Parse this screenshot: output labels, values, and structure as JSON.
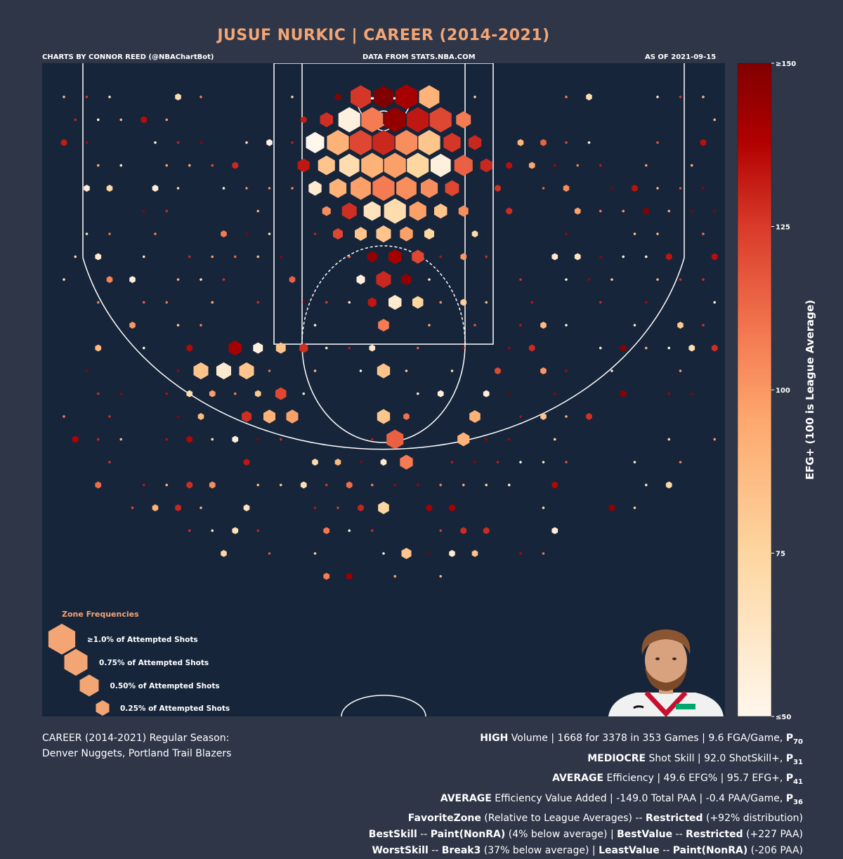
{
  "header": {
    "title": "JUSUF NURKIC | CAREER (2014-2021)",
    "credit": "CHARTS BY CONNOR REED (@NBAChartBot)",
    "source": "DATA FROM STATS.NBA.COM",
    "asof": "AS OF 2021-09-15"
  },
  "legend": {
    "title": "Zone Frequencies",
    "items": [
      {
        "label": "≥1.0% of Attempted Shots",
        "frequency": 1.0
      },
      {
        "label": "0.75% of Attempted Shots",
        "frequency": 0.75
      },
      {
        "label": "0.50% of Attempted Shots",
        "frequency": 0.5
      },
      {
        "label": "0.25% of Attempted Shots",
        "frequency": 0.25
      }
    ]
  },
  "colorbar": {
    "label": "EFG+ (100 is League Average)",
    "ticks": [
      {
        "value": 150,
        "label": "≥150"
      },
      {
        "value": 125,
        "label": "125"
      },
      {
        "value": 100,
        "label": "100"
      },
      {
        "value": 75,
        "label": "75"
      },
      {
        "value": 50,
        "label": "≤50"
      }
    ]
  },
  "caption": {
    "line1": "CAREER (2014-2021) Regular Season:",
    "line2": "Denver Nuggets, Portland Trail Blazers"
  },
  "stats": {
    "l1": {
      "b1": "HIGH",
      "t1": " Volume | 1668 for 3378 in 353 Games | 9.6 FGA/Game, ",
      "p": "P",
      "s": "70"
    },
    "l2": {
      "b1": "MEDIOCRE",
      "t1": " Shot Skill | 92.0 ShotSkill+, ",
      "p": "P",
      "s": "31"
    },
    "l3": {
      "b1": "AVERAGE",
      "t1": " Efficiency | 49.6 EFG% | 95.7 EFG+, ",
      "p": "P",
      "s": "41"
    },
    "l4": {
      "b1": "AVERAGE",
      "t1": " Efficiency Value Added | -149.0 Total PAA | -0.4 PAA/Game, ",
      "p": "P",
      "s": "36"
    },
    "l5": {
      "b1": "FavoriteZone",
      "t1": " (Relative to League Averages) -- ",
      "b2": "Restricted",
      "t2": " (+92% distribution)"
    },
    "l6": {
      "b1": "BestSkill",
      "t1": " -- ",
      "b2": "Paint(NonRA)",
      "t2": " (4% below average) | ",
      "b3": "BestValue",
      "t3": " -- ",
      "b4": "Restricted",
      "t4": " (+227 PAA)"
    },
    "l7": {
      "b1": "WorstSkill",
      "t1": " -- ",
      "b2": "Break3",
      "t2": " (37% below average) | ",
      "b3": "LeastValue",
      "t3": " -- ",
      "b4": "Paint(NonRA)",
      "t4": " (-206 PAA)"
    }
  },
  "colors": {
    "background": "#2e3648",
    "court": "#17253a",
    "title": "#f4a574",
    "lines": "#ffffff"
  },
  "chart_data": {
    "type": "hexbin",
    "color_metric": "EFG+",
    "color_range": [
      50,
      150
    ],
    "size_metric": "frequency (% of attempted shots)",
    "points": [
      {
        "col": 0,
        "row": 0,
        "efg": 150,
        "freq": 0.8
      },
      {
        "col": 1,
        "row": 0,
        "efg": 140,
        "freq": 1.0
      },
      {
        "col": -1,
        "row": 0,
        "efg": 115,
        "freq": 0.85
      },
      {
        "col": 2,
        "row": 0,
        "efg": 85,
        "freq": 0.85
      },
      {
        "col": 0,
        "row": 1,
        "efg": 145,
        "freq": 1.0
      },
      {
        "col": 1,
        "row": 1,
        "efg": 130,
        "freq": 1.0
      },
      {
        "col": -1,
        "row": 1,
        "efg": 100,
        "freq": 1.0
      },
      {
        "col": 2,
        "row": 1,
        "efg": 110,
        "freq": 1.0
      },
      {
        "col": -2,
        "row": 1,
        "efg": 55,
        "freq": 1.0
      },
      {
        "col": -3,
        "row": 1,
        "efg": 120,
        "freq": 0.35
      },
      {
        "col": 3,
        "row": 1,
        "efg": 100,
        "freq": 0.45
      },
      {
        "col": 0,
        "row": 2,
        "efg": 125,
        "freq": 1.0
      },
      {
        "col": 1,
        "row": 2,
        "efg": 95,
        "freq": 1.0
      },
      {
        "col": -1,
        "row": 2,
        "efg": 110,
        "freq": 1.0
      },
      {
        "col": 2,
        "row": 2,
        "efg": 80,
        "freq": 1.0
      },
      {
        "col": -2,
        "row": 2,
        "efg": 85,
        "freq": 1.0
      },
      {
        "col": -3,
        "row": 2,
        "efg": 50,
        "freq": 0.7
      },
      {
        "col": 3,
        "row": 2,
        "efg": 115,
        "freq": 0.6
      },
      {
        "col": 4,
        "row": 2,
        "efg": 125,
        "freq": 0.35
      },
      {
        "col": 0,
        "row": 3,
        "efg": 90,
        "freq": 1.0
      },
      {
        "col": 1,
        "row": 3,
        "efg": 75,
        "freq": 1.0
      },
      {
        "col": -1,
        "row": 3,
        "efg": 85,
        "freq": 1.0
      },
      {
        "col": 2,
        "row": 3,
        "efg": 55,
        "freq": 0.85
      },
      {
        "col": -2,
        "row": 3,
        "efg": 70,
        "freq": 0.85
      },
      {
        "col": 3,
        "row": 3,
        "efg": 105,
        "freq": 0.7
      },
      {
        "col": -3,
        "row": 3,
        "efg": 80,
        "freq": 0.6
      },
      {
        "col": 4,
        "row": 3,
        "efg": 125,
        "freq": 0.3
      },
      {
        "col": -4,
        "row": 3,
        "efg": 130,
        "freq": 0.3
      },
      {
        "col": 0,
        "row": 4,
        "efg": 100,
        "freq": 1.0
      },
      {
        "col": 1,
        "row": 4,
        "efg": 95,
        "freq": 0.85
      },
      {
        "col": -1,
        "row": 4,
        "efg": 90,
        "freq": 0.85
      },
      {
        "col": 2,
        "row": 4,
        "efg": 95,
        "freq": 0.6
      },
      {
        "col": -2,
        "row": 4,
        "efg": 85,
        "freq": 0.6
      },
      {
        "col": 3,
        "row": 4,
        "efg": 110,
        "freq": 0.4
      },
      {
        "col": -3,
        "row": 4,
        "efg": 60,
        "freq": 0.35
      },
      {
        "col": 0,
        "row": 5,
        "efg": 70,
        "freq": 1.0
      },
      {
        "col": 1,
        "row": 5,
        "efg": 90,
        "freq": 0.6
      },
      {
        "col": -1,
        "row": 5,
        "efg": 65,
        "freq": 0.6
      },
      {
        "col": 2,
        "row": 5,
        "efg": 80,
        "freq": 0.35
      },
      {
        "col": -2,
        "row": 5,
        "efg": 120,
        "freq": 0.45
      },
      {
        "col": 3,
        "row": 5,
        "efg": 95,
        "freq": 0.2
      },
      {
        "col": -3,
        "row": 5,
        "efg": 95,
        "freq": 0.15
      },
      {
        "col": 0,
        "row": 6,
        "efg": 80,
        "freq": 0.45
      },
      {
        "col": 1,
        "row": 6,
        "efg": 90,
        "freq": 0.35
      },
      {
        "col": -1,
        "row": 6,
        "efg": 80,
        "freq": 0.3
      },
      {
        "col": 2,
        "row": 6,
        "efg": 75,
        "freq": 0.2
      },
      {
        "col": -2,
        "row": 6,
        "efg": 110,
        "freq": 0.2
      },
      {
        "col": 0,
        "row": 7,
        "efg": 140,
        "freq": 0.35
      },
      {
        "col": 1,
        "row": 7,
        "efg": 110,
        "freq": 0.3
      },
      {
        "col": -1,
        "row": 7,
        "efg": 145,
        "freq": 0.2
      },
      {
        "col": 0,
        "row": 8,
        "efg": 125,
        "freq": 0.45
      },
      {
        "col": 1,
        "row": 8,
        "efg": 145,
        "freq": 0.2
      },
      {
        "col": -1,
        "row": 8,
        "efg": 55,
        "freq": 0.15
      },
      {
        "col": 0,
        "row": 9,
        "efg": 60,
        "freq": 0.35
      },
      {
        "col": 1,
        "row": 9,
        "efg": 75,
        "freq": 0.25
      },
      {
        "col": -1,
        "row": 9,
        "efg": 130,
        "freq": 0.15
      },
      {
        "col": 0,
        "row": 10,
        "efg": 100,
        "freq": 0.25
      },
      {
        "col": -7,
        "row": 11,
        "efg": 140,
        "freq": 0.35
      },
      {
        "col": -8,
        "row": 12,
        "efg": 80,
        "freq": 0.45
      },
      {
        "col": -7,
        "row": 12,
        "efg": 60,
        "freq": 0.45
      },
      {
        "col": -6,
        "row": 12,
        "efg": 80,
        "freq": 0.45
      },
      {
        "col": 0,
        "row": 12,
        "efg": 80,
        "freq": 0.35
      },
      {
        "col": -5,
        "row": 13,
        "efg": 110,
        "freq": 0.25
      },
      {
        "col": 0,
        "row": 14,
        "efg": 80,
        "freq": 0.35
      },
      {
        "col": 0,
        "row": 15,
        "efg": 105,
        "freq": 0.6
      },
      {
        "col": -6,
        "row": 11,
        "efg": 55,
        "freq": 0.2
      },
      {
        "col": -5,
        "row": 11,
        "efg": 80,
        "freq": 0.2
      },
      {
        "col": -4,
        "row": 11,
        "efg": 120,
        "freq": 0.15
      },
      {
        "col": 1,
        "row": 16,
        "efg": 100,
        "freq": 0.35
      },
      {
        "col": 0,
        "row": 18,
        "efg": 75,
        "freq": 0.25
      },
      {
        "col": 1,
        "row": 20,
        "efg": 80,
        "freq": 0.2
      },
      {
        "col": -4,
        "row": 14,
        "efg": 90,
        "freq": 0.3
      },
      {
        "col": -5,
        "row": 14,
        "efg": 85,
        "freq": 0.3
      },
      {
        "col": -6,
        "row": 14,
        "efg": 120,
        "freq": 0.2
      },
      {
        "col": 4,
        "row": 14,
        "efg": 85,
        "freq": 0.25
      },
      {
        "col": 3,
        "row": 15,
        "efg": 85,
        "freq": 0.3
      }
    ]
  }
}
